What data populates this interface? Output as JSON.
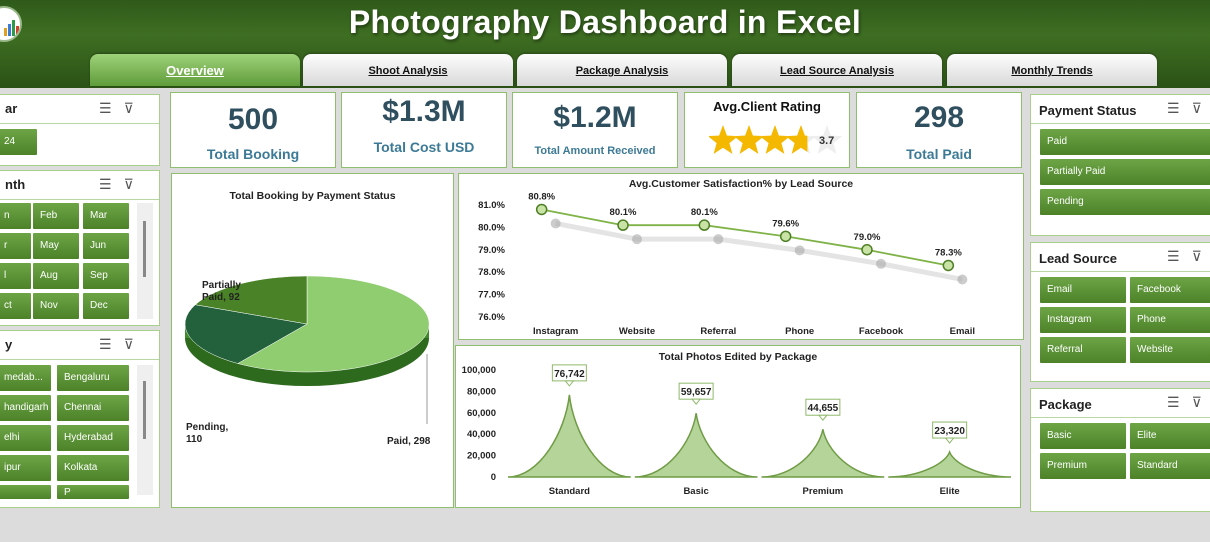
{
  "title": "Photography Dashboard in Excel",
  "tabs": [
    "Overview",
    "Shoot Analysis",
    "Package Analysis",
    "Lead Source Analysis",
    "Monthly Trends"
  ],
  "kpis": [
    {
      "value": "500",
      "label": "Total Booking"
    },
    {
      "value": "$1.3M",
      "label": "Total Cost USD"
    },
    {
      "value": "$1.2M",
      "label": "Total Amount Received"
    },
    {
      "label": "Avg.Client Rating",
      "rating": 3.7,
      "rating_text": "3.7",
      "max": 5
    },
    {
      "value": "298",
      "label": "Total Paid"
    }
  ],
  "slicers": {
    "year": {
      "title": "ar",
      "items": [
        "24"
      ]
    },
    "month": {
      "title": "nth",
      "items": [
        "n",
        "Feb",
        "Mar",
        "r",
        "May",
        "Jun",
        "l",
        "Aug",
        "Sep",
        "ct",
        "Nov",
        "Dec"
      ]
    },
    "city": {
      "title": "y",
      "items": [
        "medab...",
        "Bengaluru",
        "handigarh",
        "Chennai",
        "elhi",
        "Hyderabad",
        "ipur",
        "Kolkata",
        "",
        "P"
      ]
    },
    "payment_status": {
      "title": "Payment Status",
      "items": [
        "Paid",
        "Partially Paid",
        "Pending"
      ]
    },
    "lead_source": {
      "title": "Lead Source",
      "items": [
        "Email",
        "Facebook",
        "Instagram",
        "Phone",
        "Referral",
        "Website"
      ]
    },
    "package": {
      "title": "Package",
      "items": [
        "Basic",
        "Elite",
        "Premium",
        "Standard"
      ]
    }
  },
  "icons": {
    "multiselect": "multi-select-icon",
    "clear_filter": "clear-filter-icon",
    "star": "star-icon",
    "logo": "logo-icon"
  },
  "colors": {
    "header": "#3e6e22",
    "accent": "#5f9c3a",
    "button": "#5a9034",
    "kpi_value": "#2f4f5f",
    "kpi_label": "#3d7a96",
    "star": "#f5b800"
  },
  "chart_data": [
    {
      "type": "pie",
      "title": "Total Booking by Payment Status",
      "categories": [
        "Paid",
        "Pending",
        "Partially Paid"
      ],
      "values": [
        298,
        110,
        92
      ],
      "data_labels": [
        "Paid, 298",
        "Pending, 110",
        "Partially Paid, 92"
      ],
      "colors": [
        "#90cc70",
        "#22613c",
        "#4a8227"
      ]
    },
    {
      "type": "line",
      "title": "Avg.Customer Satisfaction% by Lead Source",
      "categories": [
        "Instagram",
        "Website",
        "Referral",
        "Phone",
        "Facebook",
        "Email"
      ],
      "values": [
        80.8,
        80.1,
        80.1,
        79.6,
        79.0,
        78.3
      ],
      "data_labels": [
        "80.8%",
        "80.1%",
        "80.1%",
        "79.6%",
        "79.0%",
        "78.3%"
      ],
      "yticks": [
        "81.0%",
        "80.0%",
        "79.0%",
        "78.0%",
        "77.0%",
        "76.0%"
      ],
      "ylim": [
        76,
        81
      ]
    },
    {
      "type": "area",
      "title": "Total Photos Edited by Package",
      "categories": [
        "Standard",
        "Basic",
        "Premium",
        "Elite"
      ],
      "values": [
        76742,
        59657,
        44655,
        23320
      ],
      "data_labels": [
        "76,742",
        "59,657",
        "44,655",
        "23,320"
      ],
      "yticks": [
        "100,000",
        "80,000",
        "60,000",
        "40,000",
        "20,000",
        "0"
      ],
      "ylim": [
        0,
        100000
      ]
    }
  ]
}
